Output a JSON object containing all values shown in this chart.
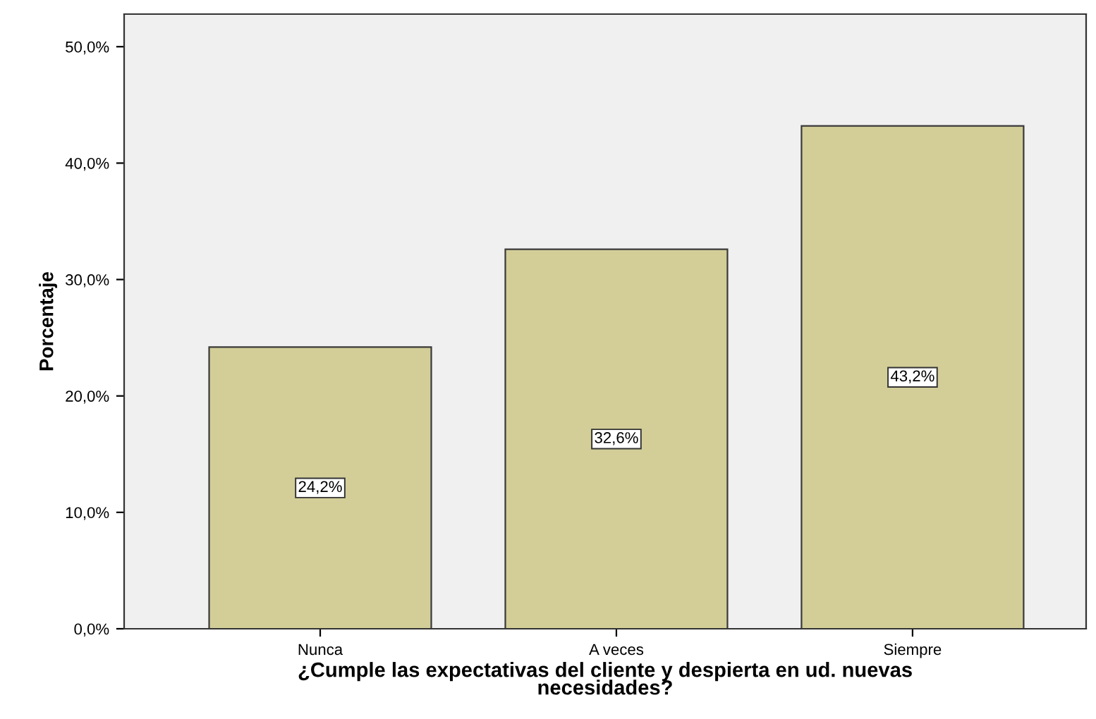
{
  "chart_data": {
    "type": "bar",
    "categories": [
      "Nunca",
      "A veces",
      "Siempre"
    ],
    "values": [
      24.2,
      32.6,
      43.2
    ],
    "value_labels": [
      "24,2%",
      "32,6%",
      "43,2%"
    ],
    "color": "#d3ce98",
    "xlabel": "¿Cumple las expectativas del cliente y despierta en ud. nuevas\nnecesidades?",
    "ylabel": "Porcentaje",
    "ylim": [
      0,
      52.8
    ],
    "yticks": [
      {
        "value": 0,
        "label": "0,0%"
      },
      {
        "value": 10,
        "label": "10,0%"
      },
      {
        "value": 20,
        "label": "20,0%"
      },
      {
        "value": 30,
        "label": "30,0%"
      },
      {
        "value": 40,
        "label": "40,0%"
      },
      {
        "value": 50,
        "label": "50,0%"
      }
    ],
    "grid": false,
    "legend": false
  }
}
